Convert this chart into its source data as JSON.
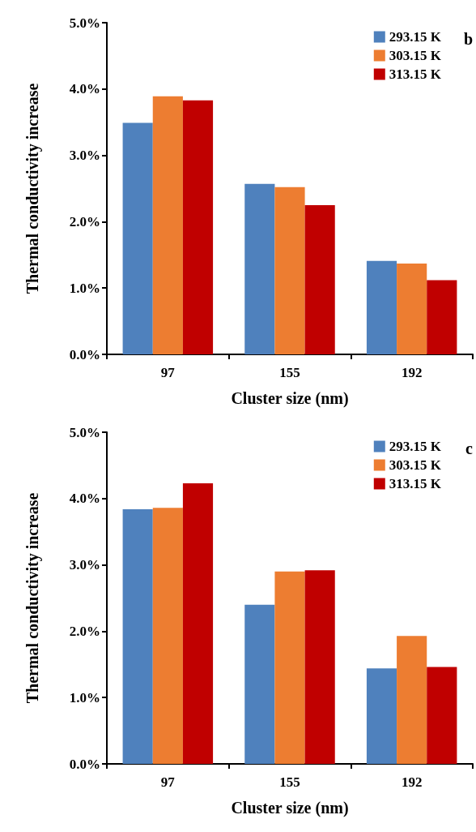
{
  "chart_data": [
    {
      "type": "bar",
      "xlabel": "Cluster size (nm)",
      "ylabel": "Thermal conductivity increase",
      "categories": [
        "97",
        "155",
        "192"
      ],
      "series": [
        {
          "name": "293.15 K",
          "color": "#4f81bd",
          "values": [
            3.49,
            2.57,
            1.41
          ]
        },
        {
          "name": "303.15 K",
          "color": "#ed7d31",
          "values": [
            3.89,
            2.52,
            1.37
          ]
        },
        {
          "name": "313.15 K",
          "color": "#c00000",
          "values": [
            3.83,
            2.25,
            1.12
          ]
        }
      ],
      "ylim": [
        0,
        5
      ],
      "yticks": [
        {
          "value": 0,
          "label": "0.0%"
        },
        {
          "value": 1,
          "label": "1.0%"
        },
        {
          "value": 2,
          "label": "2.0%"
        },
        {
          "value": 3,
          "label": "3.0%"
        },
        {
          "value": 4,
          "label": "4.0%"
        },
        {
          "value": 5,
          "label": "5.0%"
        }
      ],
      "legend": "top right",
      "grid": false,
      "annotations": [
        "b"
      ]
    },
    {
      "type": "bar",
      "xlabel": "Cluster size (nm)",
      "ylabel": "Thermal conductivity increase",
      "categories": [
        "97",
        "155",
        "192"
      ],
      "series": [
        {
          "name": "293.15 K",
          "color": "#4f81bd",
          "values": [
            3.84,
            2.4,
            1.44
          ]
        },
        {
          "name": "303.15 K",
          "color": "#ed7d31",
          "values": [
            3.86,
            2.9,
            1.93
          ]
        },
        {
          "name": "313.15 K",
          "color": "#c00000",
          "values": [
            4.23,
            2.92,
            1.46
          ]
        }
      ],
      "ylim": [
        0,
        5
      ],
      "yticks": [
        {
          "value": 0,
          "label": "0.0%"
        },
        {
          "value": 1,
          "label": "1.0%"
        },
        {
          "value": 2,
          "label": "2.0%"
        },
        {
          "value": 3,
          "label": "3.0%"
        },
        {
          "value": 4,
          "label": "4.0%"
        },
        {
          "value": 5,
          "label": "5.0%"
        }
      ],
      "legend": "top right",
      "grid": false,
      "annotations": [
        "c"
      ]
    }
  ]
}
